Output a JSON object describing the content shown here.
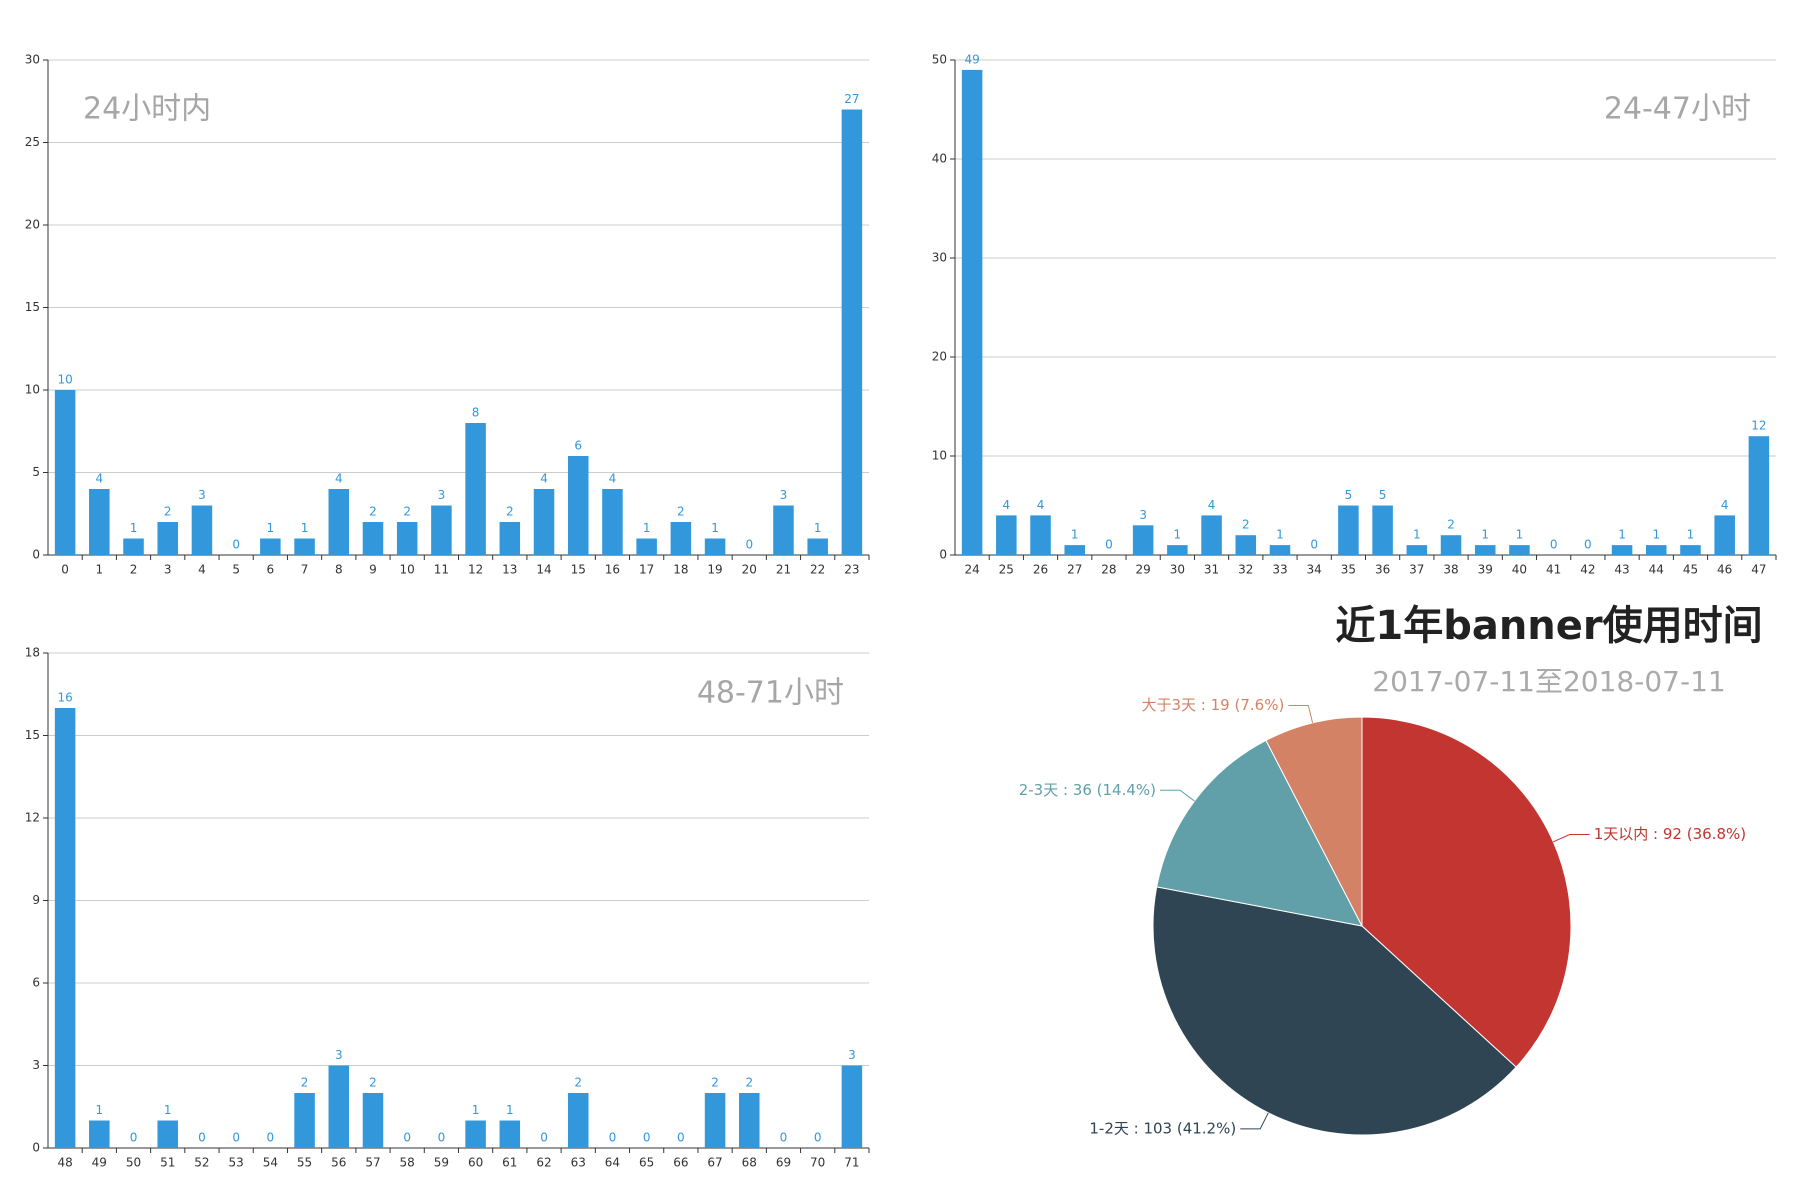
{
  "chart_data": [
    {
      "type": "bar",
      "title": "24小时内",
      "categories": [
        "0",
        "1",
        "2",
        "3",
        "4",
        "5",
        "6",
        "7",
        "8",
        "9",
        "10",
        "11",
        "12",
        "13",
        "14",
        "15",
        "16",
        "17",
        "18",
        "19",
        "20",
        "21",
        "22",
        "23"
      ],
      "values": [
        10,
        4,
        1,
        2,
        3,
        0,
        1,
        1,
        4,
        2,
        2,
        3,
        8,
        2,
        4,
        6,
        4,
        1,
        2,
        1,
        0,
        3,
        1,
        27
      ],
      "color": "#3398DB",
      "ylim": [
        0,
        30
      ],
      "yticks": [
        0,
        5,
        10,
        15,
        20,
        25,
        30
      ],
      "grid": true
    },
    {
      "type": "bar",
      "title": "24-47小时",
      "categories": [
        "24",
        "25",
        "26",
        "27",
        "28",
        "29",
        "30",
        "31",
        "32",
        "33",
        "34",
        "35",
        "36",
        "37",
        "38",
        "39",
        "40",
        "41",
        "42",
        "43",
        "44",
        "45",
        "46",
        "47"
      ],
      "values": [
        49,
        4,
        4,
        1,
        0,
        3,
        1,
        4,
        2,
        1,
        0,
        5,
        5,
        1,
        2,
        1,
        1,
        0,
        0,
        1,
        1,
        1,
        4,
        12
      ],
      "color": "#3398DB",
      "ylim": [
        0,
        50
      ],
      "yticks": [
        0,
        10,
        20,
        30,
        40,
        50
      ],
      "grid": true
    },
    {
      "type": "bar",
      "title": "48-71小时",
      "categories": [
        "48",
        "49",
        "50",
        "51",
        "52",
        "53",
        "54",
        "55",
        "56",
        "57",
        "58",
        "59",
        "60",
        "61",
        "62",
        "63",
        "64",
        "65",
        "66",
        "67",
        "68",
        "69",
        "70",
        "71"
      ],
      "values": [
        16,
        1,
        0,
        1,
        0,
        0,
        0,
        2,
        3,
        2,
        0,
        0,
        1,
        1,
        0,
        2,
        0,
        0,
        0,
        2,
        2,
        0,
        0,
        3
      ],
      "color": "#3398DB",
      "ylim": [
        0,
        18
      ],
      "yticks": [
        0,
        3,
        6,
        9,
        12,
        15,
        18
      ],
      "grid": true
    },
    {
      "type": "pie",
      "title": "近1年banner使用时间",
      "subtitle": "2017-07-11至2018-07-11",
      "values": [
        92,
        103,
        36,
        19
      ],
      "value_labels": [
        "1天以内 : 92 (36.8%)",
        "1-2天 : 103 (41.2%)",
        "2-3天 : 36 (14.4%)",
        "大于3天 : 19 (7.6%)"
      ],
      "colors": [
        "#c23531",
        "#2f4554",
        "#61a0a8",
        "#d48265"
      ]
    }
  ]
}
